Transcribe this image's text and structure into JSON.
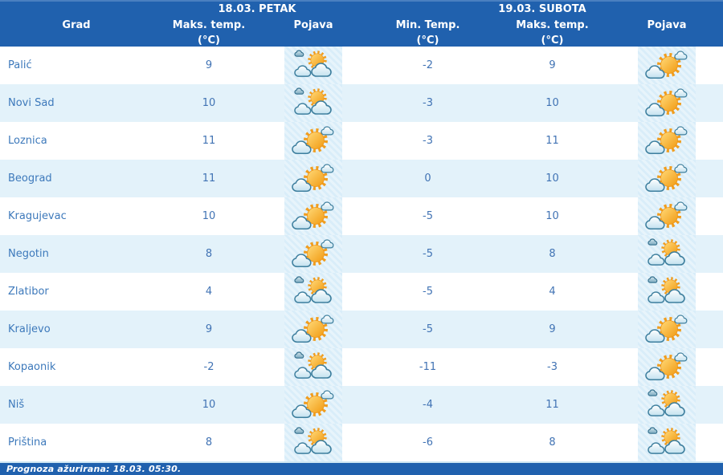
{
  "table": {
    "day1_header": "18.03. PETAK",
    "day2_header": "19.03. SUBOTA",
    "columns": {
      "city": "Grad",
      "fri_max": "Maks. temp.",
      "fri_appearance": "Pojava",
      "sat_min": "Min. Temp.",
      "sat_max": "Maks. temp.",
      "sat_appearance": "Pojava",
      "unit": "(°C)"
    },
    "rows": [
      {
        "city": "Palić",
        "fri_max": "9",
        "fri_icon": "mostly-cloudy",
        "sat_min": "-2",
        "sat_max": "9",
        "sat_icon": "partly-sunny"
      },
      {
        "city": "Novi Sad",
        "fri_max": "10",
        "fri_icon": "mostly-cloudy",
        "sat_min": "-3",
        "sat_max": "10",
        "sat_icon": "partly-sunny"
      },
      {
        "city": "Loznica",
        "fri_max": "11",
        "fri_icon": "partly-sunny",
        "sat_min": "-3",
        "sat_max": "11",
        "sat_icon": "partly-sunny"
      },
      {
        "city": "Beograd",
        "fri_max": "11",
        "fri_icon": "partly-sunny",
        "sat_min": "0",
        "sat_max": "10",
        "sat_icon": "partly-sunny"
      },
      {
        "city": "Kragujevac",
        "fri_max": "10",
        "fri_icon": "partly-sunny",
        "sat_min": "-5",
        "sat_max": "10",
        "sat_icon": "partly-sunny"
      },
      {
        "city": "Negotin",
        "fri_max": "8",
        "fri_icon": "partly-sunny",
        "sat_min": "-5",
        "sat_max": "8",
        "sat_icon": "mostly-cloudy"
      },
      {
        "city": "Zlatibor",
        "fri_max": "4",
        "fri_icon": "mostly-cloudy",
        "sat_min": "-5",
        "sat_max": "4",
        "sat_icon": "mostly-cloudy"
      },
      {
        "city": "Kraljevo",
        "fri_max": "9",
        "fri_icon": "partly-sunny",
        "sat_min": "-5",
        "sat_max": "9",
        "sat_icon": "partly-sunny"
      },
      {
        "city": "Kopaonik",
        "fri_max": "-2",
        "fri_icon": "mostly-cloudy",
        "sat_min": "-11",
        "sat_max": "-3",
        "sat_icon": "partly-sunny"
      },
      {
        "city": "Niš",
        "fri_max": "10",
        "fri_icon": "partly-sunny",
        "sat_min": "-4",
        "sat_max": "11",
        "sat_icon": "mostly-cloudy"
      },
      {
        "city": "Priština",
        "fri_max": "8",
        "fri_icon": "mostly-cloudy",
        "sat_min": "-6",
        "sat_max": "8",
        "sat_icon": "mostly-cloudy"
      }
    ]
  },
  "footer": {
    "updated": "Prognoza ažurirana:  18.03. 05:30."
  },
  "icons": {
    "partly-sunny": "sun dominant with small cloud top-right and cloud bottom-left",
    "mostly-cloudy": "two clouds in front of sun with small cloud top-left"
  },
  "colors": {
    "header_bg": "#2061ae",
    "row_alt_bg": "#e3f2fa",
    "city_color": "#3d79bb",
    "temp_color": "#4173b4",
    "footer_bg": "#2061ae",
    "sun_color": "#f5a623",
    "cloud_outline": "#3e7f9e"
  }
}
